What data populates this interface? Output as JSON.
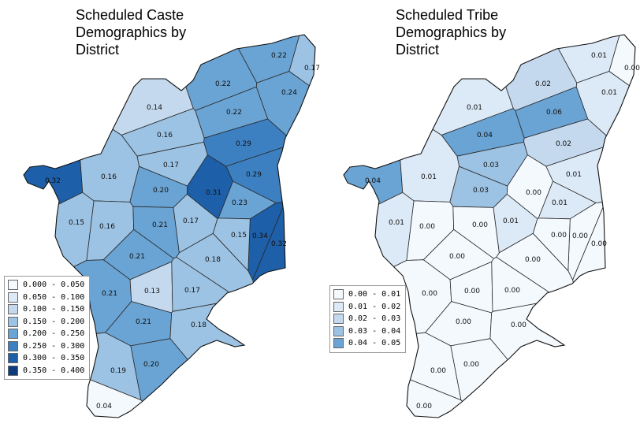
{
  "maps": [
    {
      "title_lines": [
        "Scheduled Caste",
        "Demographics by",
        "District"
      ],
      "legend": [
        {
          "label": "0.000 - 0.050",
          "color": "#f4f9fe"
        },
        {
          "label": "0.050 - 0.100",
          "color": "#dce9f6"
        },
        {
          "label": "0.100 - 0.150",
          "color": "#c4d9ee"
        },
        {
          "label": "0.150 - 0.200",
          "color": "#9dc3e4"
        },
        {
          "label": "0.200 - 0.250",
          "color": "#6aa4d4"
        },
        {
          "label": "0.250 - 0.300",
          "color": "#3d80c2"
        },
        {
          "label": "0.300 - 0.350",
          "color": "#1d5fa8"
        },
        {
          "label": "0.350 - 0.400",
          "color": "#0c3b7e"
        }
      ],
      "districts": [
        {
          "value": "0.22"
        },
        {
          "value": "0.17"
        },
        {
          "value": "0.22"
        },
        {
          "value": "0.24"
        },
        {
          "value": "0.14"
        },
        {
          "value": "0.22"
        },
        {
          "value": "0.16"
        },
        {
          "value": "0.29"
        },
        {
          "value": "0.17"
        },
        {
          "value": "0.32"
        },
        {
          "value": "0.16"
        },
        {
          "value": "0.29"
        },
        {
          "value": "0.20"
        },
        {
          "value": "0.31"
        },
        {
          "value": "0.23"
        },
        {
          "value": "0.15"
        },
        {
          "value": "0.16"
        },
        {
          "value": "0.21"
        },
        {
          "value": "0.17"
        },
        {
          "value": "0.34"
        },
        {
          "value": "0.15"
        },
        {
          "value": "0.32"
        },
        {
          "value": "0.21"
        },
        {
          "value": "0.18"
        },
        {
          "value": "0.21"
        },
        {
          "value": "0.13"
        },
        {
          "value": "0.17"
        },
        {
          "value": "0.21"
        },
        {
          "value": "0.18"
        },
        {
          "value": "0.20"
        },
        {
          "value": "0.19"
        },
        {
          "value": "0.04"
        }
      ]
    },
    {
      "title_lines": [
        "Scheduled Tribe",
        "Demographics by",
        "District"
      ],
      "legend": [
        {
          "label": "0.00 - 0.01",
          "color": "#f4f9fe"
        },
        {
          "label": "0.01 - 0.02",
          "color": "#dce9f6"
        },
        {
          "label": "0.02 - 0.03",
          "color": "#c4d9ee"
        },
        {
          "label": "0.03 - 0.04",
          "color": "#9dc3e4"
        },
        {
          "label": "0.04 - 0.05",
          "color": "#6aa4d4"
        }
      ],
      "districts": [
        {
          "value": "0.01"
        },
        {
          "value": "0.00"
        },
        {
          "value": "0.02"
        },
        {
          "value": "0.01"
        },
        {
          "value": "0.01"
        },
        {
          "value": "0.06"
        },
        {
          "value": "0.04"
        },
        {
          "value": "0.02"
        },
        {
          "value": "0.03"
        },
        {
          "value": "0.04"
        },
        {
          "value": "0.01"
        },
        {
          "value": "0.01"
        },
        {
          "value": "0.03"
        },
        {
          "value": "0.00"
        },
        {
          "value": "0.01"
        },
        {
          "value": "0.01"
        },
        {
          "value": "0.00"
        },
        {
          "value": "0.00"
        },
        {
          "value": "0.01"
        },
        {
          "value": "0.00"
        },
        {
          "value": "0.00"
        },
        {
          "value": "0.00"
        },
        {
          "value": "0.00"
        },
        {
          "value": "0.00"
        },
        {
          "value": "0.00"
        },
        {
          "value": "0.00"
        },
        {
          "value": "0.00"
        },
        {
          "value": "0.00"
        },
        {
          "value": "0.00"
        },
        {
          "value": "0.00"
        },
        {
          "value": "0.00"
        },
        {
          "value": "0.00"
        }
      ]
    }
  ]
}
